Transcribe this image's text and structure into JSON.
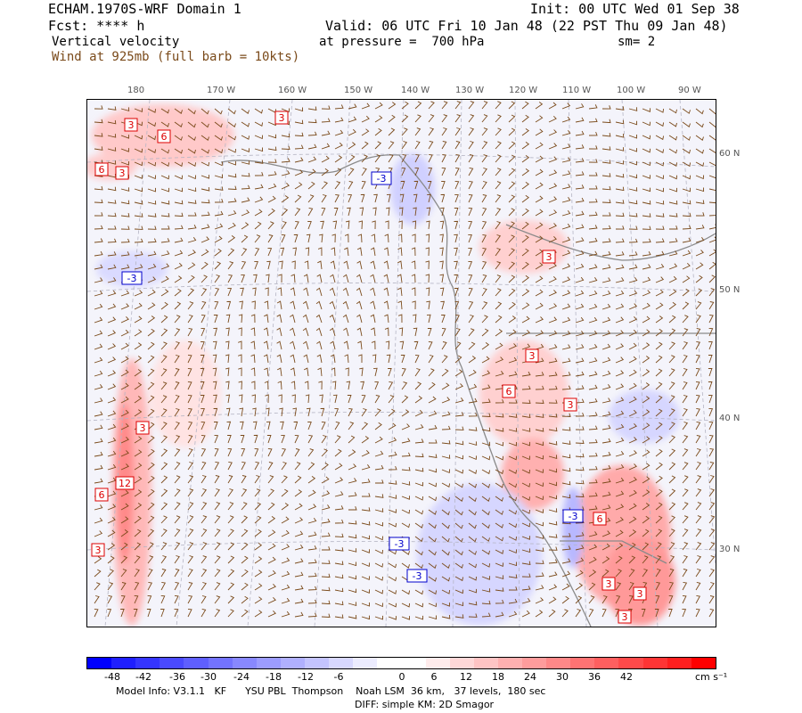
{
  "header": {
    "model": "ECHAM.1970S-WRF Domain 1",
    "init": "Init: 00 UTC Wed 01 Sep 38",
    "fcst": "Fcst: **** h",
    "valid": "Valid: 06 UTC Fri 10 Jan 48 (22 PST Thu 09 Jan 48)",
    "field": "Vertical velocity",
    "pressure": "at pressure =  700 hPa",
    "smooth": "sm= 2",
    "wind": "Wind at 925mb (full barb = 10kts)"
  },
  "top_lon_labels": [
    "180",
    "170 W",
    "160 W",
    "150 W",
    "140 W",
    "130 W",
    "120 W",
    "110 W",
    "100 W",
    "90 W"
  ],
  "right_lat_labels": [
    "60 N",
    "50 N",
    "40 N",
    "30 N"
  ],
  "contour_labels": [
    "3",
    "6",
    "3",
    "6",
    "3",
    "-3",
    "3",
    "-3",
    "3",
    "6",
    "3",
    "3",
    "6",
    "12",
    "3",
    "-3",
    "-3",
    "-3",
    "6",
    "3",
    "3",
    "3"
  ],
  "colorbar": {
    "ticks": [
      "-48",
      "-42",
      "-36",
      "-30",
      "-24",
      "-18",
      "-12",
      "-6",
      "0",
      "6",
      "12",
      "18",
      "24",
      "30",
      "36",
      "42"
    ],
    "units": "cm s⁻¹",
    "colors": [
      "#0000ff",
      "#1f1fff",
      "#3535ff",
      "#4a4aff",
      "#5f5fff",
      "#7373ff",
      "#8888ff",
      "#9c9cff",
      "#b0b0ff",
      "#c4c4ff",
      "#d8d8ff",
      "#ececff",
      "#ffffff",
      "#ffffff",
      "#ffecec",
      "#ffd8d8",
      "#ffc4c4",
      "#ffb0b0",
      "#ff9c9c",
      "#ff8888",
      "#ff7373",
      "#ff5f5f",
      "#ff4a4a",
      "#ff3535",
      "#ff1f1f",
      "#ff0000"
    ]
  },
  "footer": {
    "line1": "Model Info: V3.1.1   KF      YSU PBL  Thompson    Noah LSM  36 km,   37 levels,  180 sec",
    "line2": "DIFF: simple KM: 2D Smagor"
  }
}
